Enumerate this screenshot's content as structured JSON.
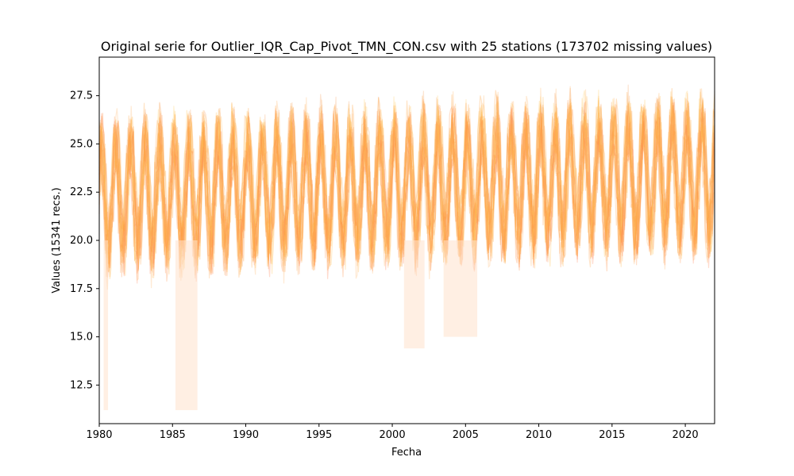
{
  "chart_data": {
    "type": "line",
    "title": "Original serie for Outlier_IQR_Cap_Pivot_TMN_CON.csv with 25 stations (173702 missing values)",
    "xlabel": "Fecha",
    "ylabel": "Values (15341 recs.)",
    "xlim": [
      1980.0,
      2022.0
    ],
    "ylim": [
      10.5,
      29.5
    ],
    "x_ticks": [
      1980,
      1985,
      1990,
      1995,
      2000,
      2005,
      2010,
      2015,
      2020
    ],
    "y_ticks": [
      12.5,
      15.0,
      17.5,
      20.0,
      22.5,
      25.0,
      27.5
    ],
    "grid": false,
    "legend": "none",
    "n_stations": 25,
    "n_records": 15341,
    "series_colors": [
      "#ff9a2e",
      "#ffb347",
      "#ffc04d",
      "#ff8c42",
      "#ffa64d",
      "#f4a261",
      "#ffcc66",
      "#ff7f50",
      "#ffb366",
      "#fdae61"
    ],
    "series_profile": {
      "x_start": 1980.0,
      "x_end": 2022.0,
      "mean_early": 22.3,
      "mean_late": 23.3,
      "seasonal_amplitude": 2.8,
      "noise_amplitude": 1.6,
      "max_value": 28.7,
      "min_value": 11.2
    }
  }
}
